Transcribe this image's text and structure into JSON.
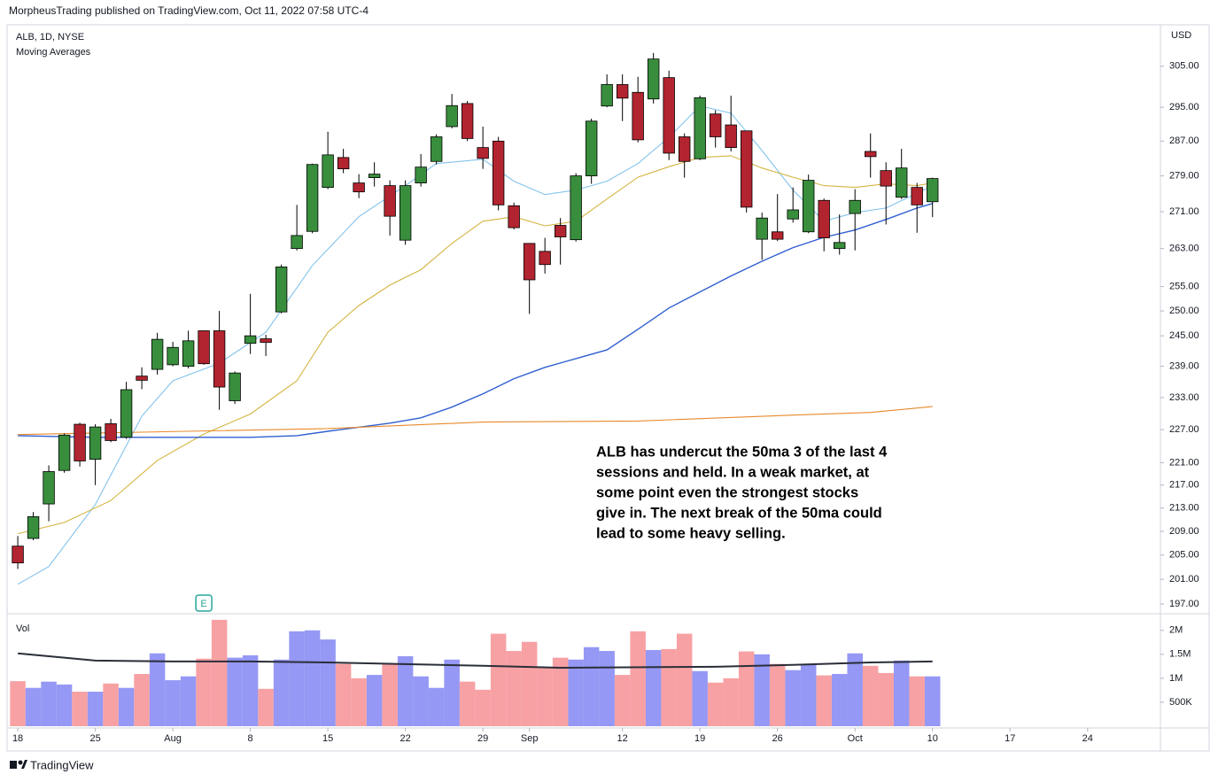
{
  "header": {
    "published": "MorpheusTrading published on TradingView.com, Oct 11, 2022 07:58 UTC-4",
    "symbol": "ALB, 1D, NYSE",
    "indicator": "Moving Averages"
  },
  "footer": "TradingView",
  "chart_data": {
    "type": "candlestick",
    "currency": "USD",
    "log_scale": true,
    "grid": false,
    "ylim": [
      195.6,
      315
    ],
    "yticks": [
      {
        "value": 197,
        "label": "197.00"
      },
      {
        "value": 201,
        "label": "201.00"
      },
      {
        "value": 205,
        "label": "205.00"
      },
      {
        "value": 209,
        "label": "209.00"
      },
      {
        "value": 213,
        "label": "213.00"
      },
      {
        "value": 217,
        "label": "217.00"
      },
      {
        "value": 221,
        "label": "221.00"
      },
      {
        "value": 227,
        "label": "227.00"
      },
      {
        "value": 233,
        "label": "233.00"
      },
      {
        "value": 239,
        "label": "239.00"
      },
      {
        "value": 245,
        "label": "245.00"
      },
      {
        "value": 250,
        "label": "250.00"
      },
      {
        "value": 255,
        "label": "255.00"
      },
      {
        "value": 263,
        "label": "263.00"
      },
      {
        "value": 271,
        "label": "271.00"
      },
      {
        "value": 279,
        "label": "279.00"
      },
      {
        "value": 287,
        "label": "287.00"
      },
      {
        "value": 295,
        "label": "295.00"
      },
      {
        "value": 305,
        "label": "305.00"
      }
    ],
    "xlim": [
      -0.69,
      73.7
    ],
    "xticks": [
      {
        "value": 0,
        "label": "18"
      },
      {
        "value": 5,
        "label": "25"
      },
      {
        "value": 10,
        "label": "Aug"
      },
      {
        "value": 15,
        "label": "8"
      },
      {
        "value": 20,
        "label": "15"
      },
      {
        "value": 25,
        "label": "22"
      },
      {
        "value": 30,
        "label": "29"
      },
      {
        "value": 33,
        "label": "Sep"
      },
      {
        "value": 39,
        "label": "12"
      },
      {
        "value": 44,
        "label": "19"
      },
      {
        "value": 49,
        "label": "26"
      },
      {
        "value": 54,
        "label": "Oct"
      },
      {
        "value": 59,
        "label": "10"
      },
      {
        "value": 64,
        "label": "17"
      },
      {
        "value": 69,
        "label": "24"
      }
    ],
    "up_color": "#388e3c",
    "down_color": "#b2242f",
    "open": [
      206.5,
      207.8,
      213.7,
      219.6,
      228,
      221.6,
      228.1,
      225.6,
      237.1,
      238.4,
      239.3,
      239,
      246,
      246,
      232.4,
      243.5,
      244.4,
      249.8,
      263,
      266.7,
      276.4,
      283.2,
      277.4,
      278.6,
      276.8,
      264.8,
      277.4,
      282.3,
      290.4,
      295.9,
      285.5,
      287,
      272.3,
      264.1,
      262.4,
      268,
      264.9,
      279,
      295.3,
      300.5,
      298.6,
      297,
      302.2,
      288,
      282.9,
      293.4,
      290.8,
      289.4,
      265,
      266.6,
      269.4,
      266.6,
      273.5,
      263,
      270.6,
      284.6,
      280.2,
      274.2,
      276.4,
      273.2
    ],
    "high": [
      208.2,
      212.3,
      220.5,
      226.3,
      228.3,
      228,
      229,
      236,
      238.8,
      245.6,
      243.8,
      246,
      246,
      250,
      238,
      253.5,
      245.2,
      259.6,
      272.5,
      281.8,
      289.2,
      285.2,
      279.4,
      282.1,
      278,
      278,
      284,
      288.6,
      298.2,
      296.5,
      290.4,
      288,
      273,
      264.1,
      265.3,
      269.6,
      279.6,
      292.3,
      303,
      303,
      302.4,
      308.3,
      303.9,
      288.8,
      297.8,
      294.3,
      297.8,
      289.4,
      270.8,
      274.9,
      276.4,
      279.3,
      273.9,
      270.4,
      276,
      288.8,
      282.1,
      285.2,
      277.4,
      278.6
    ],
    "low": [
      202.7,
      207.5,
      210.7,
      219.2,
      220.3,
      217,
      224.7,
      225.3,
      234.6,
      237.4,
      239,
      238.6,
      239.3,
      230.7,
      231.8,
      241.4,
      241,
      249.5,
      262.6,
      266.3,
      276,
      279.6,
      274,
      276.6,
      265.8,
      263.8,
      276.6,
      281.6,
      290,
      287,
      280.6,
      271.3,
      267.1,
      249.4,
      257.7,
      259.6,
      264.5,
      277.2,
      295,
      291.7,
      286.7,
      295.9,
      282.6,
      278.6,
      282.6,
      285.5,
      284.6,
      270.8,
      260.6,
      264.6,
      268.6,
      266.3,
      262.4,
      261.7,
      262.6,
      278.6,
      268.2,
      273.8,
      266.4,
      269.8
    ],
    "close": [
      203.7,
      211.5,
      219.4,
      226,
      221.3,
      227.5,
      225,
      234.5,
      236.3,
      244.3,
      242.7,
      244,
      239.5,
      235,
      237.7,
      245,
      243.7,
      259.1,
      265.8,
      281.6,
      283.8,
      280.6,
      275.4,
      279.4,
      270,
      276.8,
      281,
      288,
      295.4,
      287.6,
      283,
      272.5,
      267.5,
      256.4,
      259.6,
      265.5,
      279,
      291.7,
      300.5,
      297.2,
      287.3,
      306.8,
      284.2,
      282.3,
      297.3,
      288,
      285.5,
      272,
      269.6,
      265,
      271.4,
      278,
      265.3,
      264.3,
      273.5,
      283.4,
      276.7,
      280.8,
      272.5,
      278.4
    ],
    "moving_averages": [
      {
        "color": "#82c3ec",
        "x": [
          0,
          2,
          5,
          8,
          10,
          13,
          16,
          19,
          22,
          25,
          27,
          30,
          32,
          34,
          36,
          38,
          40,
          42,
          44,
          46,
          48,
          50,
          52,
          54,
          56,
          58,
          59
        ],
        "values": [
          200.2,
          203.1,
          213.6,
          229.5,
          236.2,
          239.6,
          245.7,
          259.4,
          269.9,
          276.8,
          281.8,
          282.8,
          277.8,
          274.8,
          275.8,
          277.8,
          281.8,
          287.9,
          295.3,
          293.6,
          284.8,
          275.8,
          268.9,
          270.8,
          271.8,
          275.1,
          276.8
        ]
      },
      {
        "color": "#d4b440",
        "x": [
          0,
          3,
          6,
          9,
          12,
          15,
          18,
          20,
          22,
          24,
          26,
          28,
          30,
          32,
          34,
          36,
          38,
          40,
          42,
          44,
          46,
          48,
          50,
          52,
          54,
          56,
          58,
          59
        ],
        "values": [
          208.6,
          210.5,
          214.3,
          221.4,
          226.2,
          229.9,
          236.2,
          245.7,
          251.1,
          255.3,
          258.5,
          264.1,
          268.9,
          269.9,
          267.9,
          268.9,
          273.8,
          278.7,
          281.1,
          283.2,
          283.6,
          280.8,
          278.7,
          276.8,
          276.4,
          277.2,
          276.8,
          277.4
        ]
      },
      {
        "color": "#2f5fd0",
        "x": [
          0,
          5,
          10,
          15,
          18,
          20,
          24,
          26,
          28,
          30,
          32,
          34,
          36,
          38,
          40,
          42,
          44,
          46,
          48,
          50,
          52,
          54,
          56,
          58,
          59
        ],
        "values": [
          225.9,
          225.6,
          225.6,
          225.6,
          225.9,
          226.7,
          228.2,
          229.2,
          231.2,
          233.7,
          236.6,
          238.8,
          240.5,
          242.2,
          246.3,
          250.6,
          253.9,
          257.2,
          260.3,
          263.2,
          265.4,
          267,
          269.3,
          271.8,
          272.8
        ]
      },
      {
        "color": "#e8892a",
        "x": [
          0,
          20,
          30,
          40,
          50,
          55,
          59
        ],
        "values": [
          226.1,
          227.2,
          228.4,
          228.6,
          229.7,
          230.2,
          231.3
        ]
      }
    ],
    "earnings_marker": {
      "label": "E",
      "x": 12
    },
    "annotation": [
      "ALB has undercut the 50ma 3 of the last 4",
      "sessions and held.  In a weak market, at",
      "some point even the strongest stocks",
      "give in.  The next break of the 50ma could",
      "lead to some heavy selling."
    ],
    "volume": {
      "label": "Vol",
      "ylim": [
        0,
        2310000
      ],
      "yticks": [
        {
          "value": 500000,
          "label": "500K"
        },
        {
          "value": 1000000,
          "label": "1M"
        },
        {
          "value": 1500000,
          "label": "1.5M"
        },
        {
          "value": 2000000,
          "label": "2M"
        }
      ],
      "up_color": "#9598f4",
      "down_color": "#f7a1a4",
      "values": [
        940000,
        800000,
        930000,
        870000,
        720000,
        720000,
        890000,
        800000,
        1090000,
        1520000,
        960000,
        1040000,
        1410000,
        2220000,
        1430000,
        1480000,
        780000,
        1390000,
        1980000,
        2000000,
        1810000,
        1300000,
        1000000,
        1070000,
        1300000,
        1460000,
        1040000,
        800000,
        1390000,
        930000,
        760000,
        1930000,
        1570000,
        1760000,
        1220000,
        1430000,
        1390000,
        1650000,
        1570000,
        1070000,
        1980000,
        1590000,
        1610000,
        1930000,
        1150000,
        910000,
        1000000,
        1560000,
        1500000,
        1300000,
        1170000,
        1300000,
        1060000,
        1090000,
        1520000,
        1260000,
        1110000,
        1370000,
        1040000,
        1040000
      ],
      "ma": {
        "color": "#2a2e39",
        "x": [
          0,
          5,
          10,
          15,
          20,
          30,
          35,
          45,
          50,
          55,
          59
        ],
        "values": [
          1520000,
          1370000,
          1350000,
          1350000,
          1330000,
          1260000,
          1220000,
          1240000,
          1280000,
          1330000,
          1350000
        ]
      }
    }
  }
}
